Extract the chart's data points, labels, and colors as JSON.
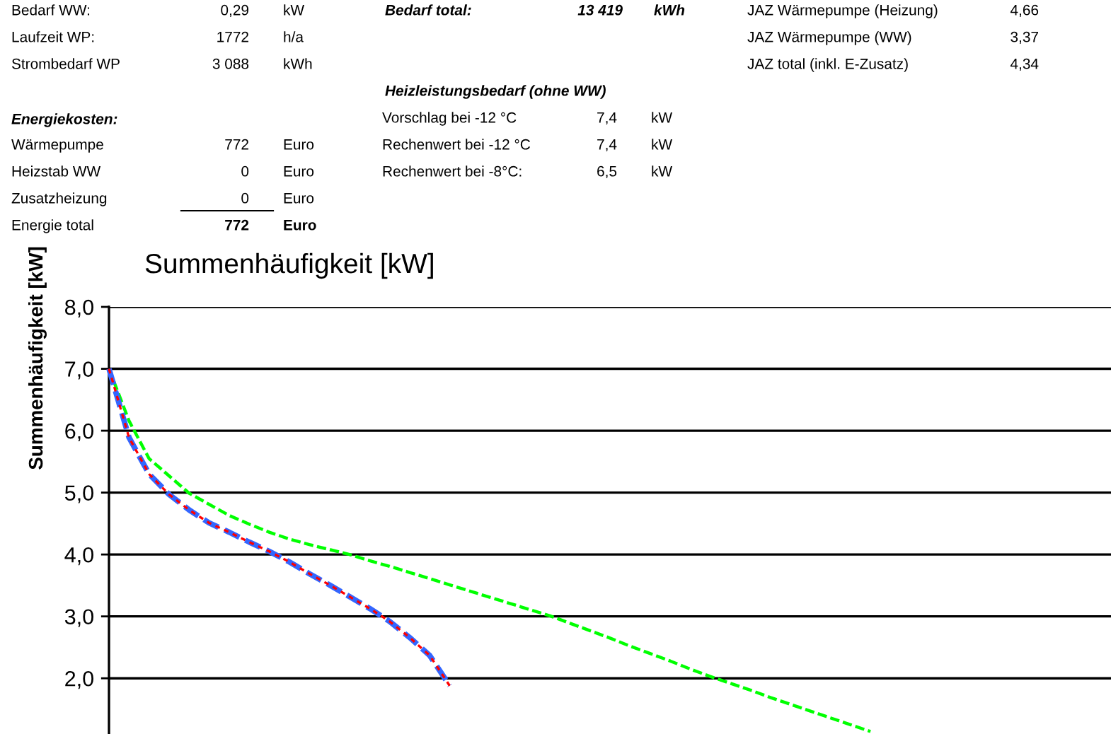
{
  "chart_data": {
    "type": "line",
    "title": "Summenhäufigkeit [kW]",
    "ylabel": "Summenhäufigkeit [kW]",
    "categories": [
      null,
      null,
      null,
      null,
      null,
      null,
      null,
      null,
      null,
      null,
      null,
      null,
      null,
      null,
      null,
      null,
      null,
      null,
      null,
      null,
      null,
      null,
      null,
      null,
      null,
      null,
      null,
      null,
      null,
      null,
      null,
      null,
      null,
      null,
      null,
      null,
      null,
      null,
      null,
      null,
      null,
      null,
      null,
      null,
      null,
      null,
      null,
      null,
      null,
      null,
      null
    ],
    "ylim": [
      1.1,
      8.0
    ],
    "yticks": [
      {
        "value": 2,
        "label": "2,0"
      },
      {
        "value": 3,
        "label": "3,0"
      },
      {
        "value": 4,
        "label": "4,0"
      },
      {
        "value": 5,
        "label": "5,0"
      },
      {
        "value": 6,
        "label": "6,0"
      },
      {
        "value": 7,
        "label": "7,0"
      },
      {
        "value": 8,
        "label": "8,0"
      }
    ],
    "tick_labels": "y",
    "grid": "y",
    "legend": false,
    "marker": "none",
    "line_style": "dashed",
    "series": [
      {
        "color": "#ff0000",
        "values": [
          7.0,
          5.89,
          5.3,
          4.97,
          4.72,
          4.51,
          4.36,
          4.2,
          4.05,
          3.88,
          3.69,
          3.51,
          3.32,
          3.13,
          2.92,
          2.66,
          2.37,
          1.88,
          null,
          null,
          null,
          null,
          null,
          null,
          null,
          null,
          null,
          null,
          null,
          null,
          null,
          null,
          null,
          null,
          null,
          null,
          null,
          null,
          null,
          null,
          null,
          null,
          null,
          null,
          null,
          null,
          null,
          null,
          null,
          null,
          null
        ]
      },
      {
        "color": "#3366ff",
        "values": [
          7.0,
          5.89,
          5.3,
          4.97,
          4.72,
          4.51,
          4.36,
          4.2,
          4.05,
          3.88,
          3.69,
          3.51,
          3.32,
          3.13,
          2.92,
          2.66,
          2.37,
          1.88,
          null,
          null,
          null,
          null,
          null,
          null,
          null,
          null,
          null,
          null,
          null,
          null,
          null,
          null,
          null,
          null,
          null,
          null,
          null,
          null,
          null,
          null,
          null,
          null,
          null,
          null,
          null,
          null,
          null,
          null,
          null,
          null,
          null
        ]
      },
      {
        "color": "#00ff00",
        "values": [
          7.0,
          6.16,
          5.55,
          5.27,
          4.99,
          4.81,
          4.63,
          4.49,
          4.36,
          4.25,
          4.16,
          4.08,
          4.0,
          3.9,
          3.81,
          3.71,
          3.61,
          3.51,
          3.41,
          3.31,
          3.21,
          3.11,
          3.01,
          2.89,
          2.77,
          2.65,
          2.52,
          2.4,
          2.28,
          2.15,
          2.03,
          1.92,
          1.81,
          1.69,
          1.58,
          1.47,
          1.36,
          1.25,
          1.14,
          null,
          null,
          null,
          null,
          null,
          null,
          null,
          null,
          null,
          null,
          null,
          null
        ]
      }
    ],
    "annotations": [
      "Bedarf WW:",
      "0,29",
      "kW",
      "Laufzeit WP:",
      "1772",
      "h/a",
      "Strombedarf WP",
      "3 088",
      "kWh",
      "Energiekosten:",
      "Wärmepumpe",
      "772",
      "Euro",
      "Heizstab WW",
      "0",
      "Euro",
      "Zusatzheizung",
      "0",
      "Euro",
      "Energie total",
      "772",
      "Euro",
      "Bedarf total:",
      "13 419",
      "kWh",
      "Heizleistungsbedarf (ohne WW)",
      "Vorschlag bei -12 °C",
      "7,4",
      "kW",
      "Rechenwert bei -12 °C",
      "7,4",
      "kW",
      "Rechenwert bei -8°C:",
      "6,5",
      "kW",
      "JAZ Wärmepumpe (Heizung)",
      "4,66",
      "JAZ Wärmepumpe (WW)",
      "3,37",
      "JAZ total (inkl. E-Zusatz)",
      "4,34"
    ]
  }
}
